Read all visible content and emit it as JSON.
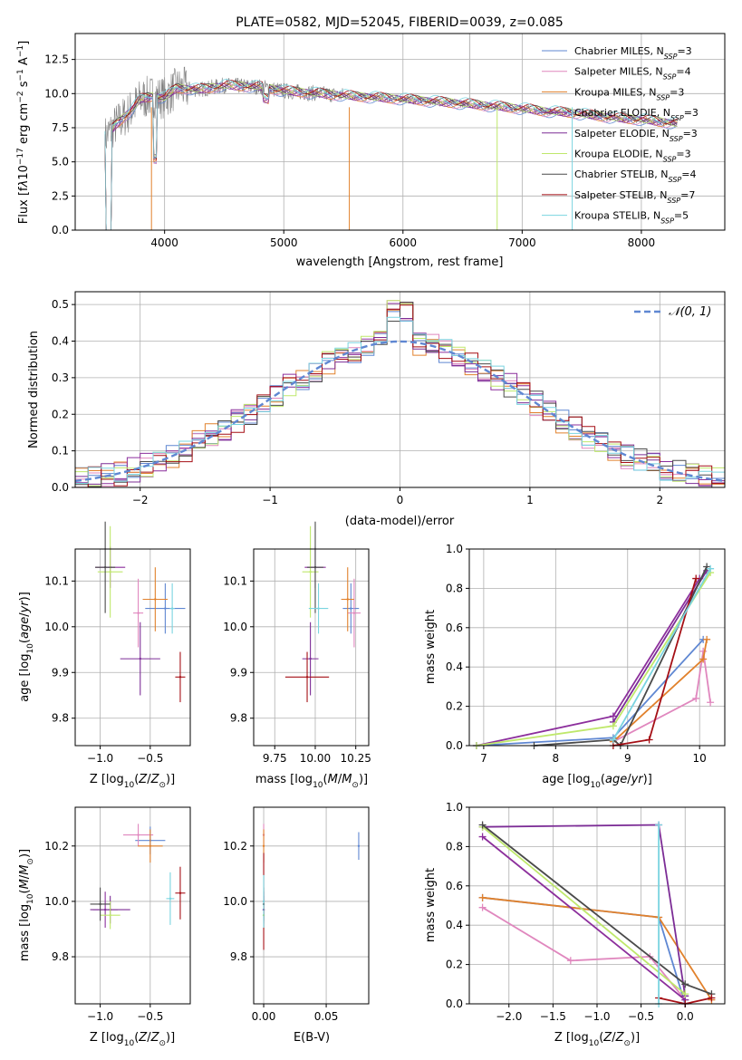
{
  "colors": [
    "#5f87d2",
    "#e087be",
    "#e1812c",
    "#8c2f9c",
    "#7c2d96",
    "#bfe86b",
    "#4a4a4a",
    "#a50f15",
    "#7ad4e0"
  ],
  "chart_data": [
    {
      "id": "spectrum",
      "type": "line",
      "title": "PLATE=0582, MJD=52045, FIBERID=0039, z=0.085",
      "xlabel": "wavelength [Angstrom, rest frame]",
      "ylabel": "Flux [fλ10⁻¹⁷ erg cm⁻² s⁻¹ A⁻¹]",
      "xlim": [
        3250,
        8700
      ],
      "ylim": [
        0,
        14.4
      ],
      "xticks": [
        4000,
        5000,
        6000,
        7000,
        8000
      ],
      "yticks": [
        0.0,
        2.5,
        5.0,
        7.5,
        10.0,
        12.5
      ],
      "legend": [
        "Chabrier MILES, N_SSP=3",
        "Salpeter MILES, N_SSP=4",
        "Kroupa MILES, N_SSP=3",
        "Chabrier ELODIE, N_SSP=3",
        "Salpeter ELODIE, N_SSP=3",
        "Kroupa ELODIE, N_SSP=3",
        "Chabrier STELIB, N_SSP=4",
        "Salpeter STELIB, N_SSP=7",
        "Kroupa STELIB, N_SSP=5"
      ],
      "legend_position": "upper-right",
      "model_x": [
        3500,
        3600,
        3700,
        3800,
        3900,
        4000,
        4100,
        4300,
        4500,
        4800,
        5000,
        5300,
        5600,
        6000,
        6300,
        6600,
        7000,
        7200,
        7400,
        7600,
        7800,
        8000,
        8200,
        8300
      ],
      "model_y": [
        6.8,
        7.8,
        8.6,
        9.6,
        9.8,
        9.7,
        10.4,
        10.3,
        10.6,
        10.5,
        10.2,
        10.0,
        9.8,
        9.6,
        9.4,
        9.2,
        8.9,
        8.7,
        8.6,
        8.4,
        8.2,
        8.1,
        7.9,
        7.8
      ]
    },
    {
      "id": "residuals",
      "type": "histogram",
      "xlabel": "(data-model)/error",
      "ylabel": "Normed distribution",
      "xlim": [
        -2.5,
        2.5
      ],
      "ylim": [
        0,
        0.535
      ],
      "xticks": [
        -2,
        -1,
        0,
        1,
        2
      ],
      "yticks": [
        0.0,
        0.1,
        0.2,
        0.3,
        0.4,
        0.5
      ],
      "legend": [
        "N(0,1)"
      ],
      "legend_position": "upper-right",
      "bin_width": 0.1
    },
    {
      "id": "age-vs-Z",
      "type": "scatter",
      "xlabel": "Z [log₁₀(Z/Z⊙)]",
      "ylabel": "age  [log₁₀(age/yr)]",
      "xlim": [
        -1.25,
        -0.1
      ],
      "ylim": [
        9.74,
        10.17
      ],
      "xticks": [
        -1.0,
        -0.5
      ],
      "yticks": [
        9.8,
        9.9,
        10.0,
        10.1
      ],
      "points": [
        {
          "x": -0.35,
          "y": 10.04,
          "xerr": 0.4,
          "yerr": 0.11
        },
        {
          "x": -0.62,
          "y": 10.03,
          "xerr": 0.1,
          "yerr": 0.15
        },
        {
          "x": -0.45,
          "y": 10.06,
          "xerr": 0.25,
          "yerr": 0.14
        },
        {
          "x": -0.9,
          "y": 10.13,
          "xerr": 0.3,
          "yerr": 0.09
        },
        {
          "x": -0.6,
          "y": 9.93,
          "xerr": 0.4,
          "yerr": 0.16
        },
        {
          "x": -0.9,
          "y": 10.12,
          "xerr": 0.25,
          "yerr": 0.2
        },
        {
          "x": -0.95,
          "y": 10.13,
          "xerr": 0.2,
          "yerr": 0.2
        },
        {
          "x": -0.2,
          "y": 9.89,
          "xerr": 0.1,
          "yerr": 0.11
        },
        {
          "x": -0.28,
          "y": 10.04,
          "xerr": 0.05,
          "yerr": 0.11
        }
      ]
    },
    {
      "id": "age-vs-mass",
      "type": "scatter",
      "xlabel": "mass [log₁₀(M/M⊙)]",
      "ylabel": "",
      "xlim": [
        9.62,
        10.33
      ],
      "ylim": [
        9.74,
        10.17
      ],
      "xticks": [
        9.75,
        10.0,
        10.25
      ],
      "yticks": [
        9.8,
        9.9,
        10.0,
        10.1
      ],
      "points": [
        {
          "x": 10.22,
          "y": 10.04,
          "xerr": 0.1,
          "yerr": 0.11
        },
        {
          "x": 10.24,
          "y": 10.03,
          "xerr": 0.08,
          "yerr": 0.15
        },
        {
          "x": 10.2,
          "y": 10.06,
          "xerr": 0.08,
          "yerr": 0.14
        },
        {
          "x": 10.0,
          "y": 10.13,
          "xerr": 0.13,
          "yerr": 0.09
        },
        {
          "x": 9.97,
          "y": 9.93,
          "xerr": 0.1,
          "yerr": 0.16
        },
        {
          "x": 9.97,
          "y": 10.12,
          "xerr": 0.1,
          "yerr": 0.2
        },
        {
          "x": 10.0,
          "y": 10.13,
          "xerr": 0.1,
          "yerr": 0.2
        },
        {
          "x": 9.95,
          "y": 9.89,
          "xerr": 0.27,
          "yerr": 0.11
        },
        {
          "x": 10.02,
          "y": 10.04,
          "xerr": 0.12,
          "yerr": 0.11
        }
      ]
    },
    {
      "id": "mass-weight-vs-age",
      "type": "line",
      "xlabel": "age  [log₁₀(age/yr)]",
      "ylabel": "mass weight",
      "xlim": [
        6.8,
        10.35
      ],
      "ylim": [
        0,
        1
      ],
      "xticks": [
        7,
        8,
        9,
        10
      ],
      "yticks": [
        0.0,
        0.2,
        0.4,
        0.6,
        0.8,
        1.0
      ],
      "series": [
        {
          "x": [
            6.9,
            8.8,
            10.05
          ],
          "y": [
            0.0,
            0.04,
            0.54
          ]
        },
        {
          "x": [
            8.8,
            9.95,
            10.05,
            10.15
          ],
          "y": [
            0.02,
            0.24,
            0.48,
            0.22
          ]
        },
        {
          "x": [
            8.8,
            10.05,
            10.1
          ],
          "y": [
            0.02,
            0.44,
            0.54
          ]
        },
        {
          "x": [
            6.9,
            8.8,
            10.0
          ],
          "y": [
            0.0,
            0.15,
            0.85
          ]
        },
        {
          "x": [
            8.8,
            10.1
          ],
          "y": [
            0.12,
            0.89
          ]
        },
        {
          "x": [
            6.9,
            8.8,
            10.15
          ],
          "y": [
            0.0,
            0.1,
            0.88
          ]
        },
        {
          "x": [
            7.7,
            8.8,
            8.9,
            10.1
          ],
          "y": [
            0.0,
            0.03,
            0.0,
            0.91
          ]
        },
        {
          "x": [
            8.8,
            9.3,
            9.95
          ],
          "y": [
            0.0,
            0.03,
            0.85
          ]
        },
        {
          "x": [
            8.8,
            10.15
          ],
          "y": [
            0.03,
            0.9
          ]
        }
      ]
    },
    {
      "id": "mass-vs-Z",
      "type": "scatter",
      "xlabel": "Z [log₁₀(Z/Z⊙)]",
      "ylabel": "mass [log₁₀(M/M⊙)]",
      "xlim": [
        -1.25,
        -0.1
      ],
      "ylim": [
        9.63,
        10.34
      ],
      "xticks": [
        -1.0,
        -0.5
      ],
      "yticks": [
        9.8,
        10.0,
        10.2
      ],
      "points": [
        {
          "x": -0.5,
          "y": 10.22,
          "xerr": 0.3,
          "yerr": 0.1
        },
        {
          "x": -0.62,
          "y": 10.24,
          "xerr": 0.3,
          "yerr": 0.08
        },
        {
          "x": -0.5,
          "y": 10.2,
          "xerr": 0.25,
          "yerr": 0.12
        },
        {
          "x": -0.95,
          "y": 9.97,
          "xerr": 0.25,
          "yerr": 0.13
        },
        {
          "x": -0.9,
          "y": 9.97,
          "xerr": 0.4,
          "yerr": 0.1
        },
        {
          "x": -0.9,
          "y": 9.95,
          "xerr": 0.2,
          "yerr": 0.1
        },
        {
          "x": -1.0,
          "y": 9.99,
          "xerr": 0.2,
          "yerr": 0.12
        },
        {
          "x": -0.2,
          "y": 10.03,
          "xerr": 0.1,
          "yerr": 0.19
        },
        {
          "x": -0.3,
          "y": 10.01,
          "xerr": 0.08,
          "yerr": 0.19
        }
      ]
    },
    {
      "id": "mass-vs-EBV",
      "type": "scatter",
      "xlabel": "E(B-V)",
      "ylabel": "",
      "xlim": [
        -0.008,
        0.084
      ],
      "ylim": [
        9.63,
        10.34
      ],
      "xticks": [
        0.0,
        0.05
      ],
      "yticks": [
        9.8,
        10.0,
        10.2
      ],
      "points": [
        {
          "x": 0.076,
          "y": 10.2,
          "yerr": 0.1
        },
        {
          "x": 0.0,
          "y": 10.24,
          "yerr": 0.08
        },
        {
          "x": 0.0,
          "y": 10.2,
          "yerr": 0.12
        },
        {
          "x": 0.0,
          "y": 9.97,
          "yerr": 0.13
        },
        {
          "x": 0.0,
          "y": 9.97,
          "yerr": 0.1
        },
        {
          "x": 0.0,
          "y": 9.95,
          "yerr": 0.1
        },
        {
          "x": 0.0,
          "y": 9.99,
          "yerr": 0.12
        },
        {
          "x": 0.0,
          "y": 10.0,
          "yerr": 0.35
        },
        {
          "x": 0.0,
          "y": 10.0,
          "yerr": 0.19
        }
      ]
    },
    {
      "id": "mass-weight-vs-Z",
      "type": "line",
      "xlabel": "Z [log₁₀(Z/Z⊙)]",
      "ylabel": "mass weight",
      "xlim": [
        -2.45,
        0.45
      ],
      "ylim": [
        0,
        1
      ],
      "xticks": [
        -2.0,
        -1.5,
        -1.0,
        -0.5,
        0.0
      ],
      "yticks": [
        0.0,
        0.2,
        0.4,
        0.6,
        0.8,
        1.0
      ],
      "series": [
        {
          "x": [
            -2.3,
            -0.3,
            0.0
          ],
          "y": [
            0.54,
            0.44,
            0.0
          ]
        },
        {
          "x": [
            -2.3,
            -1.3,
            -0.4,
            0.0
          ],
          "y": [
            0.49,
            0.22,
            0.24,
            0.02
          ]
        },
        {
          "x": [
            -2.3,
            -0.3,
            0.3
          ],
          "y": [
            0.54,
            0.44,
            0.02
          ]
        },
        {
          "x": [
            -2.3,
            0.0
          ],
          "y": [
            0.85,
            0.02
          ]
        },
        {
          "x": [
            -2.3,
            -0.3,
            0.0
          ],
          "y": [
            0.9,
            0.91,
            0.04
          ]
        },
        {
          "x": [
            -2.3,
            0.0
          ],
          "y": [
            0.9,
            0.05
          ]
        },
        {
          "x": [
            -2.3,
            0.0,
            0.3
          ],
          "y": [
            0.91,
            0.1,
            0.05
          ]
        },
        {
          "x": [
            -0.3,
            0.0,
            0.3
          ],
          "y": [
            0.03,
            0.0,
            0.03
          ]
        },
        {
          "x": [
            -0.3,
            -0.3
          ],
          "y": [
            0.0,
            0.91
          ]
        }
      ]
    }
  ]
}
